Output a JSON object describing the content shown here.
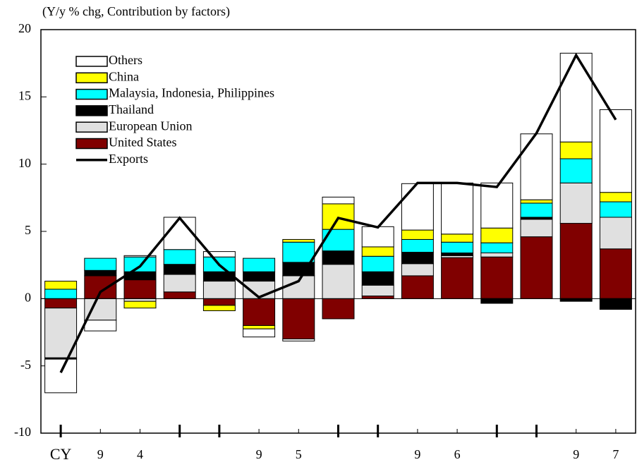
{
  "chart_data": {
    "type": "bar",
    "stacked": true,
    "y_axis_label": "(Y/y % chg, Contribution by factors)",
    "categories": [
      "CY",
      "9",
      "4",
      null,
      null,
      "9",
      "5",
      null,
      null,
      "9",
      "6",
      null,
      null,
      "9",
      "7"
    ],
    "ylim": [
      -10,
      20
    ],
    "yticks": [
      -10,
      -5,
      0,
      5,
      10,
      15,
      20
    ],
    "grid": false,
    "legend": "upper left",
    "series": [
      {
        "name": "United States",
        "color": "#800000",
        "values": [
          -0.7,
          1.7,
          1.4,
          0.5,
          -0.5,
          -2.0,
          -3.0,
          -1.5,
          0.2,
          1.7,
          3.05,
          3.1,
          4.6,
          5.6,
          3.7
        ]
      },
      {
        "name": "European Union",
        "color": "#e0e0e0",
        "values": [
          -3.7,
          -1.6,
          -0.2,
          1.3,
          1.3,
          1.3,
          1.7,
          2.55,
          0.8,
          0.9,
          0.15,
          0.3,
          1.3,
          3.0,
          2.35
        ]
      },
      {
        "name": "Thailand",
        "color": "#000000",
        "values": [
          -0.1,
          0.4,
          0.6,
          0.75,
          0.7,
          0.7,
          1.0,
          1.0,
          1.0,
          0.85,
          0.2,
          -0.35,
          0.15,
          -0.2,
          -0.8
        ]
      },
      {
        "name": "Malaysia, Indonesia, Philippines",
        "color": "#00ffff",
        "values": [
          0.7,
          0.9,
          1.1,
          1.1,
          1.1,
          1.0,
          1.5,
          1.6,
          1.15,
          0.95,
          0.8,
          0.75,
          1.05,
          1.8,
          1.15
        ]
      },
      {
        "name": "China",
        "color": "#ffff00",
        "values": [
          0.6,
          0,
          -0.5,
          0,
          -0.4,
          -0.25,
          0.2,
          1.9,
          0.7,
          0.7,
          0.6,
          1.1,
          0.25,
          1.25,
          0.7
        ]
      },
      {
        "name": "Others",
        "color": "#ffffff",
        "values": [
          -2.5,
          -0.8,
          0.1,
          2.4,
          0.4,
          -0.6,
          -0.15,
          0.5,
          1.5,
          3.45,
          3.8,
          3.35,
          4.9,
          6.6,
          6.15
        ]
      },
      {
        "name": "Exports",
        "type": "line",
        "color": "#000000",
        "values": [
          -5.5,
          0.5,
          2.4,
          6.0,
          2.5,
          0.1,
          1.3,
          6.0,
          5.3,
          8.6,
          8.6,
          8.3,
          12.3,
          18.1,
          13.3
        ]
      }
    ]
  }
}
